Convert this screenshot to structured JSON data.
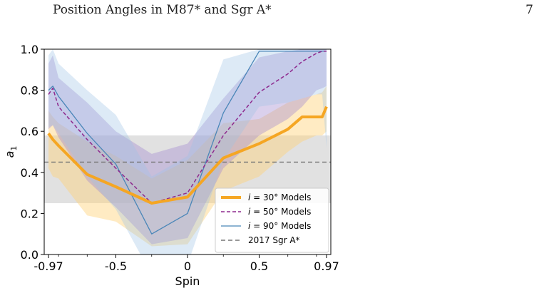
{
  "page": {
    "header_title": "Position Angles in M87* and Sgr A*",
    "page_number": "7"
  },
  "colors": {
    "i30": "#f5a623",
    "i50": "#8e2a8e",
    "i90": "#4a86b8",
    "sgra": "#777777",
    "sgra_band": "#bdbdbd",
    "band30": "#ffd27a",
    "band50": "#a389cf",
    "band90": "#9fc2e5"
  },
  "chart_data": {
    "type": "line",
    "xlabel": "Spin",
    "ylabel": "a_1",
    "xlim": [
      -1.0,
      1.0
    ],
    "ylim": [
      0.0,
      1.0
    ],
    "xticks": [
      -0.97,
      -0.5,
      0,
      0.5,
      0.97
    ],
    "xtick_labels": [
      "-0.97",
      "-0.5",
      "0",
      "0.5",
      "0.97"
    ],
    "xminor": [
      -0.9,
      -0.7,
      -0.25,
      0.25,
      0.7,
      0.9
    ],
    "yticks": [
      0.0,
      0.2,
      0.4,
      0.6,
      0.8,
      1.0
    ],
    "ytick_labels": [
      "0.0",
      "0.2",
      "0.4",
      "0.6",
      "0.8",
      "1.0"
    ],
    "legend_position": "lower-right",
    "series": [
      {
        "name": "i = 30° Models",
        "legend_prefix": "i",
        "legend_suffix": " = 30° Models",
        "style": "solid-thick",
        "color_key": "i30",
        "x": [
          -0.97,
          -0.94,
          -0.9,
          -0.7,
          -0.5,
          -0.25,
          0.0,
          0.25,
          0.5,
          0.7,
          0.8,
          0.9,
          0.94,
          0.97
        ],
        "y": [
          0.59,
          0.56,
          0.53,
          0.39,
          0.33,
          0.25,
          0.28,
          0.47,
          0.54,
          0.61,
          0.67,
          0.67,
          0.67,
          0.72
        ],
        "lower": [
          0.42,
          0.38,
          0.37,
          0.19,
          0.16,
          0.04,
          0.05,
          0.31,
          0.38,
          0.5,
          0.55,
          0.58,
          0.58,
          0.6
        ],
        "upper": [
          0.7,
          0.67,
          0.64,
          0.55,
          0.48,
          0.37,
          0.46,
          0.64,
          0.66,
          0.74,
          0.76,
          0.78,
          0.79,
          0.82
        ]
      },
      {
        "name": "i = 50° Models",
        "legend_prefix": "i",
        "legend_suffix": " = 50° Models",
        "style": "dashed",
        "color_key": "i50",
        "x": [
          -0.97,
          -0.94,
          -0.9,
          -0.7,
          -0.5,
          -0.25,
          0.0,
          0.25,
          0.5,
          0.7,
          0.8,
          0.9,
          0.94,
          0.97
        ],
        "y": [
          0.78,
          0.81,
          0.72,
          0.56,
          0.42,
          0.25,
          0.3,
          0.58,
          0.79,
          0.88,
          0.94,
          0.98,
          0.99,
          0.99
        ],
        "lower": [
          0.61,
          0.63,
          0.57,
          0.36,
          0.23,
          0.05,
          0.08,
          0.42,
          0.58,
          0.66,
          0.72,
          0.8,
          0.81,
          0.82
        ],
        "upper": [
          0.93,
          0.97,
          0.86,
          0.74,
          0.6,
          0.49,
          0.54,
          0.76,
          0.96,
          0.99,
          1.0,
          1.0,
          1.0,
          1.0
        ]
      },
      {
        "name": "i = 90° Models",
        "legend_prefix": "i",
        "legend_suffix": " = 90° Models",
        "style": "solid-thin",
        "color_key": "i90",
        "x": [
          -0.97,
          -0.94,
          -0.9,
          -0.7,
          -0.5,
          -0.25,
          0.0,
          0.25,
          0.5,
          0.7,
          0.8,
          0.9,
          0.94,
          0.97
        ],
        "y": [
          0.8,
          0.82,
          0.77,
          0.59,
          0.44,
          0.1,
          0.2,
          0.69,
          0.99,
          0.99,
          0.99,
          0.99,
          0.99,
          0.99
        ],
        "lower": [
          0.62,
          0.63,
          0.59,
          0.38,
          0.22,
          -0.1,
          -0.05,
          0.46,
          0.72,
          0.74,
          0.76,
          0.78,
          0.78,
          0.52
        ],
        "upper": [
          0.97,
          1.0,
          0.93,
          0.8,
          0.68,
          0.38,
          0.48,
          0.95,
          1.0,
          1.0,
          1.0,
          1.0,
          1.0,
          1.0
        ]
      }
    ],
    "reference": {
      "name": "2017 Sgr A*",
      "value": 0.45,
      "lower": 0.25,
      "upper": 0.58,
      "style": "dashed",
      "color_key": "sgra"
    }
  }
}
